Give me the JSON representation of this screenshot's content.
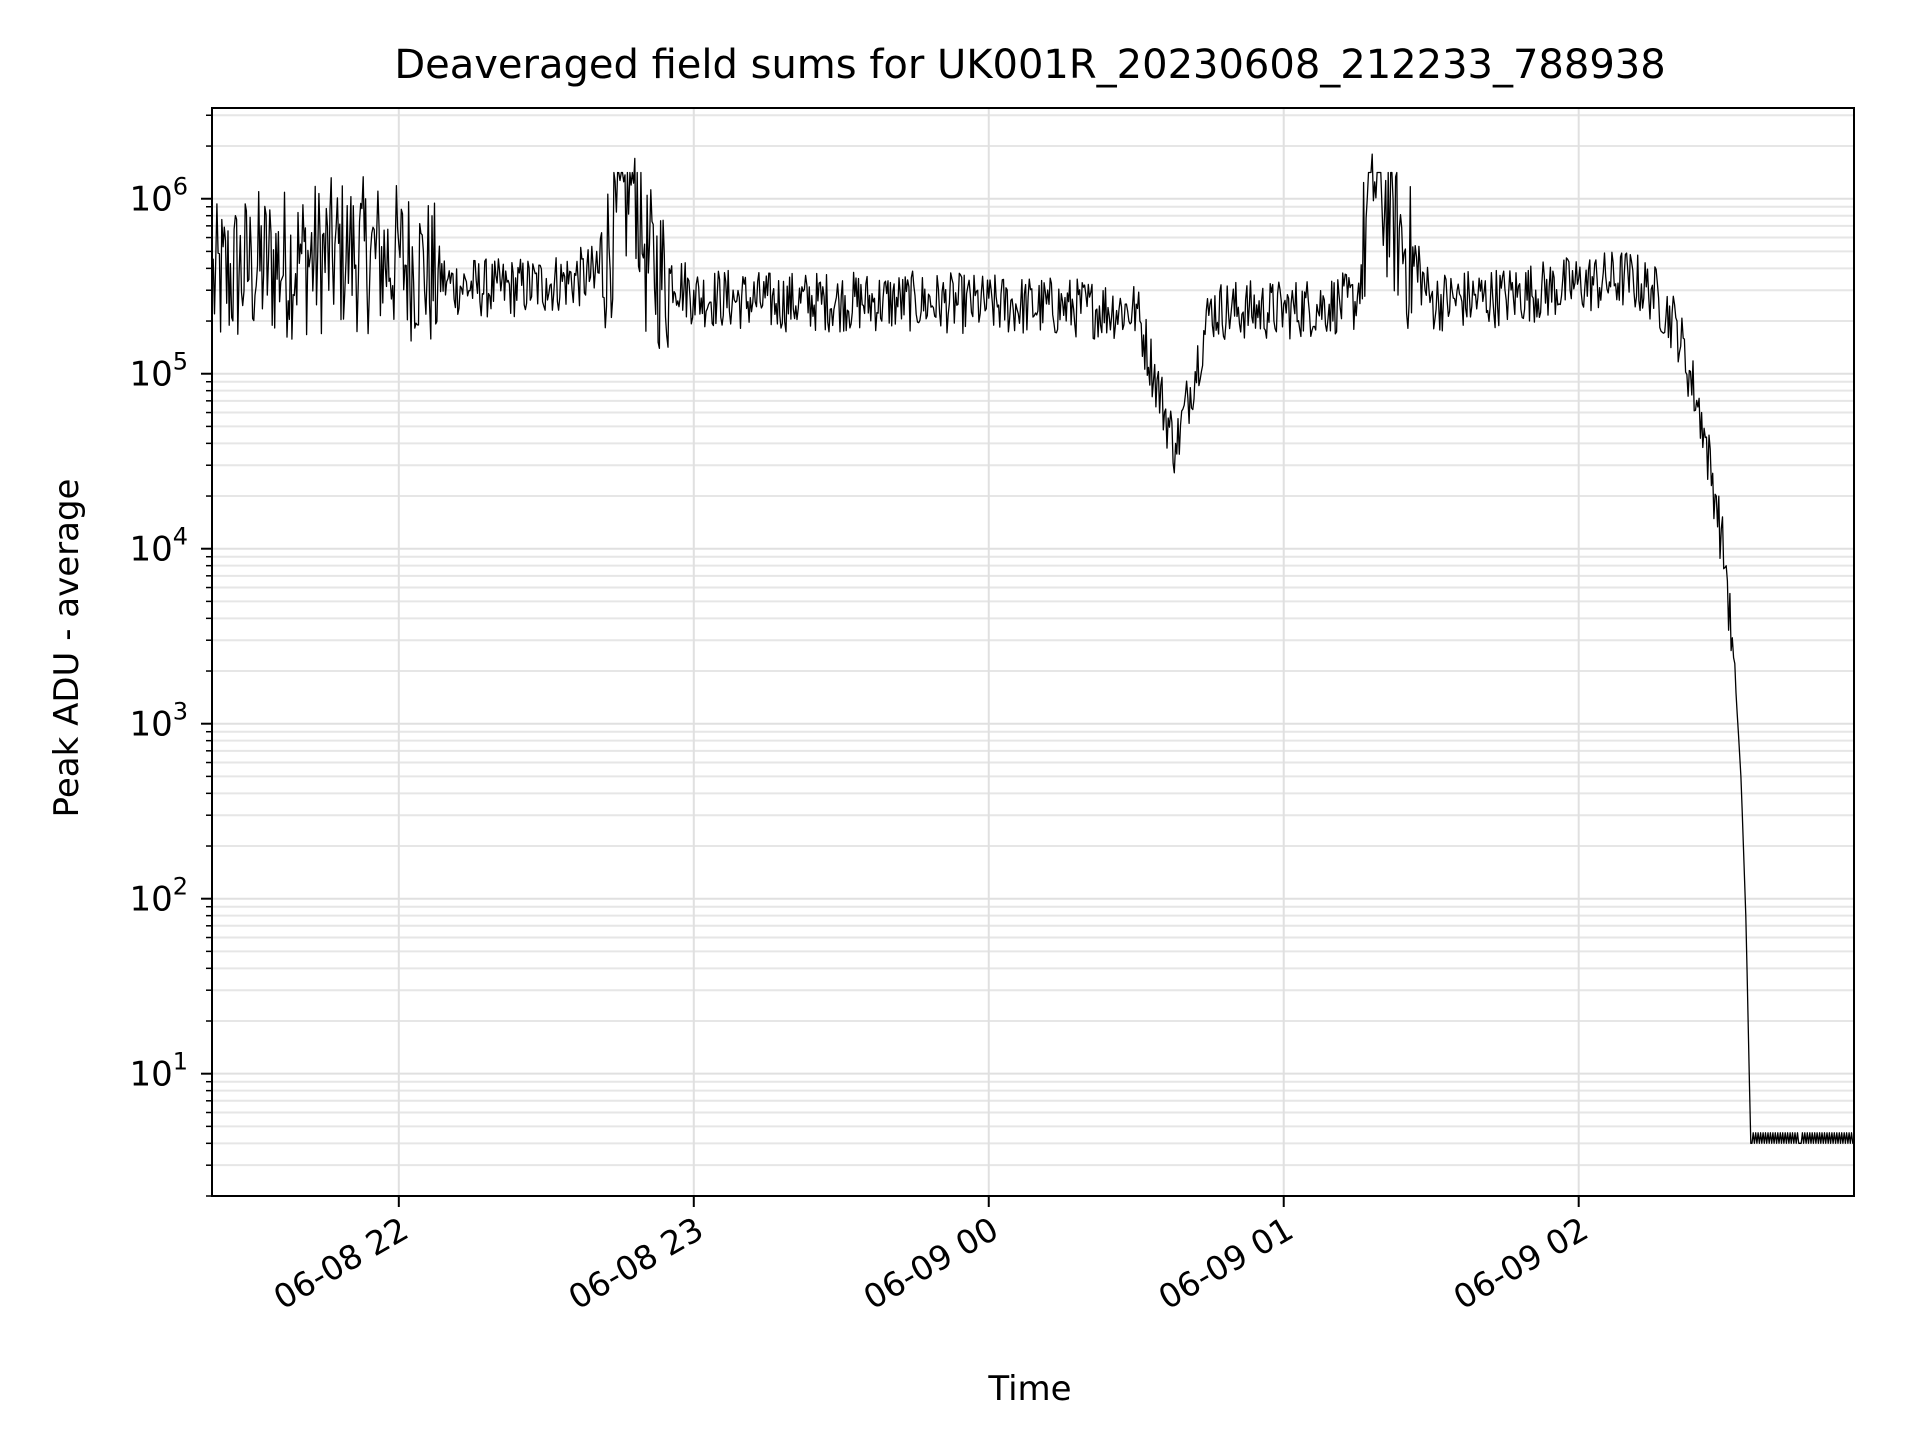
{
  "chart_data": {
    "type": "line",
    "title": "Deaveraged field sums for UK001R_20230608_212233_788938",
    "xlabel": "Time",
    "ylabel": "Peak ADU - average",
    "y_scale": "log",
    "grid": true,
    "legend": "none",
    "xlim": [
      "2023-06-08 21:22",
      "2023-06-09 02:56"
    ],
    "ylim": [
      2,
      3300000
    ],
    "x_ticks": [
      {
        "value": "2023-06-08 22:00",
        "label": "06-08 22"
      },
      {
        "value": "2023-06-08 23:00",
        "label": "06-08 23"
      },
      {
        "value": "2023-06-09 00:00",
        "label": "06-09 00"
      },
      {
        "value": "2023-06-09 01:00",
        "label": "06-09 01"
      },
      {
        "value": "2023-06-09 02:00",
        "label": "06-09 02"
      }
    ],
    "y_ticks": [
      {
        "value": 10,
        "base": "10",
        "exp": "1"
      },
      {
        "value": 100,
        "base": "10",
        "exp": "2"
      },
      {
        "value": 1000,
        "base": "10",
        "exp": "3"
      },
      {
        "value": 10000,
        "base": "10",
        "exp": "4"
      },
      {
        "value": 100000,
        "base": "10",
        "exp": "5"
      },
      {
        "value": 1000000,
        "base": "10",
        "exp": "6"
      }
    ],
    "series": [
      {
        "color": "#000000",
        "points": [
          [
            "2023-06-08 21:22",
            400000
          ],
          [
            "2023-06-08 21:30",
            500000
          ],
          [
            "2023-06-08 21:40",
            550000
          ],
          [
            "2023-06-08 21:50",
            600000
          ],
          [
            "2023-06-08 22:00",
            550000
          ],
          [
            "2023-06-08 22:05",
            500000
          ],
          [
            "2023-06-08 22:10",
            350000
          ],
          [
            "2023-06-08 22:20",
            330000
          ],
          [
            "2023-06-08 22:30",
            350000
          ],
          [
            "2023-06-08 22:40",
            400000
          ],
          [
            "2023-06-08 22:48",
            1700000
          ],
          [
            "2023-06-08 22:50",
            550000
          ],
          [
            "2023-06-08 23:00",
            300000
          ],
          [
            "2023-06-08 23:15",
            280000
          ],
          [
            "2023-06-08 23:30",
            280000
          ],
          [
            "2023-06-08 23:45",
            280000
          ],
          [
            "2023-06-09 00:00",
            270000
          ],
          [
            "2023-06-09 00:15",
            260000
          ],
          [
            "2023-06-09 00:30",
            250000
          ],
          [
            "2023-06-09 00:38",
            40000
          ],
          [
            "2023-06-09 00:45",
            250000
          ],
          [
            "2023-06-09 01:00",
            250000
          ],
          [
            "2023-06-09 01:15",
            280000
          ],
          [
            "2023-06-09 01:18",
            1800000
          ],
          [
            "2023-06-09 01:30",
            280000
          ],
          [
            "2023-06-09 01:45",
            300000
          ],
          [
            "2023-06-09 02:00",
            350000
          ],
          [
            "2023-06-09 02:10",
            380000
          ],
          [
            "2023-06-09 02:15",
            320000
          ],
          [
            "2023-06-09 02:20",
            200000
          ],
          [
            "2023-06-09 02:25",
            60000
          ],
          [
            "2023-06-09 02:28",
            20000
          ],
          [
            "2023-06-09 02:30",
            8000
          ],
          [
            "2023-06-09 02:32",
            1500
          ],
          [
            "2023-06-09 02:33",
            500
          ],
          [
            "2023-06-09 02:34",
            80
          ],
          [
            "2023-06-09 02:35",
            4
          ],
          [
            "2023-06-09 02:45",
            4
          ],
          [
            "2023-06-09 02:56",
            4
          ]
        ]
      }
    ]
  }
}
